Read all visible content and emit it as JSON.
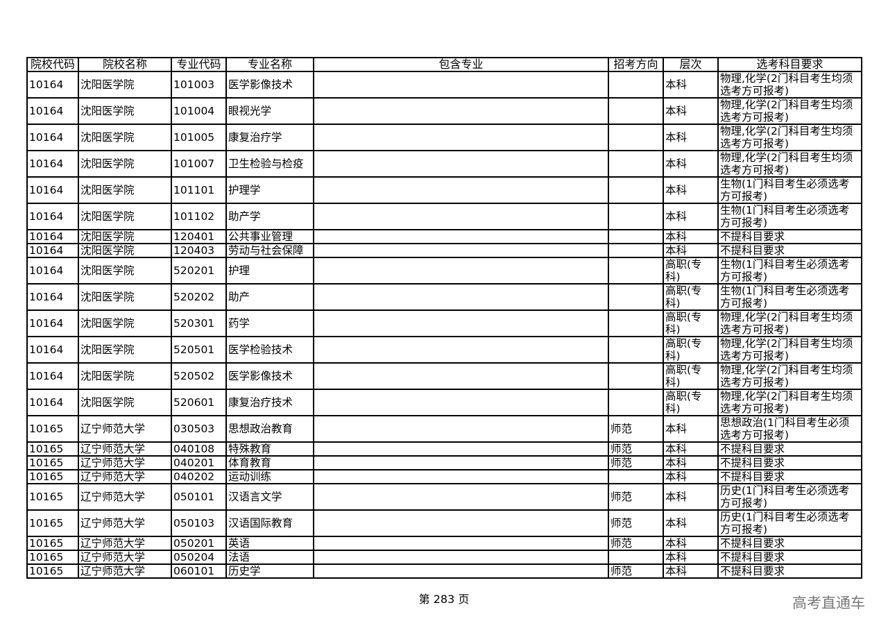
{
  "table": {
    "headers": [
      "院校代码",
      "院校名称",
      "专业代码",
      "专业名称",
      "包含专业",
      "招考方向",
      "层次",
      "选考科目要求"
    ],
    "rows": [
      [
        "10164",
        "沈阳医学院",
        "101003",
        "医学影像技术",
        "",
        "",
        "本科",
        "物理,化学(2门科目考生均须选考方可报考)"
      ],
      [
        "10164",
        "沈阳医学院",
        "101004",
        "眼视光学",
        "",
        "",
        "本科",
        "物理,化学(2门科目考生均须选考方可报考)"
      ],
      [
        "10164",
        "沈阳医学院",
        "101005",
        "康复治疗学",
        "",
        "",
        "本科",
        "物理,化学(2门科目考生均须选考方可报考)"
      ],
      [
        "10164",
        "沈阳医学院",
        "101007",
        "卫生检验与检疫",
        "",
        "",
        "本科",
        "物理,化学(2门科目考生均须选考方可报考)"
      ],
      [
        "10164",
        "沈阳医学院",
        "101101",
        "护理学",
        "",
        "",
        "本科",
        "生物(1门科目考生必须选考方可报考)"
      ],
      [
        "10164",
        "沈阳医学院",
        "101102",
        "助产学",
        "",
        "",
        "本科",
        "生物(1门科目考生必须选考方可报考)"
      ],
      [
        "10164",
        "沈阳医学院",
        "120401",
        "公共事业管理",
        "",
        "",
        "本科",
        "不提科目要求"
      ],
      [
        "10164",
        "沈阳医学院",
        "120403",
        "劳动与社会保障",
        "",
        "",
        "本科",
        "不提科目要求"
      ],
      [
        "10164",
        "沈阳医学院",
        "520201",
        "护理",
        "",
        "",
        "高职(专科)",
        "生物(1门科目考生必须选考方可报考)"
      ],
      [
        "10164",
        "沈阳医学院",
        "520202",
        "助产",
        "",
        "",
        "高职(专科)",
        "生物(1门科目考生必须选考方可报考)"
      ],
      [
        "10164",
        "沈阳医学院",
        "520301",
        "药学",
        "",
        "",
        "高职(专科)",
        "物理,化学(2门科目考生均须选考方可报考)"
      ],
      [
        "10164",
        "沈阳医学院",
        "520501",
        "医学检验技术",
        "",
        "",
        "高职(专科)",
        "物理,化学(2门科目考生均须选考方可报考)"
      ],
      [
        "10164",
        "沈阳医学院",
        "520502",
        "医学影像技术",
        "",
        "",
        "高职(专科)",
        "物理,化学(2门科目考生均须选考方可报考)"
      ],
      [
        "10164",
        "沈阳医学院",
        "520601",
        "康复治疗技术",
        "",
        "",
        "高职(专科)",
        "物理,化学(2门科目考生均须选考方可报考)"
      ],
      [
        "10165",
        "辽宁师范大学",
        "030503",
        "思想政治教育",
        "",
        "师范",
        "本科",
        "思想政治(1门科目考生必须选考方可报考)"
      ],
      [
        "10165",
        "辽宁师范大学",
        "040108",
        "特殊教育",
        "",
        "师范",
        "本科",
        "不提科目要求"
      ],
      [
        "10165",
        "辽宁师范大学",
        "040201",
        "体育教育",
        "",
        "师范",
        "本科",
        "不提科目要求"
      ],
      [
        "10165",
        "辽宁师范大学",
        "040202",
        "运动训练",
        "",
        "",
        "本科",
        "不提科目要求"
      ],
      [
        "10165",
        "辽宁师范大学",
        "050101",
        "汉语言文学",
        "",
        "师范",
        "本科",
        "历史(1门科目考生必须选考方可报考)"
      ],
      [
        "10165",
        "辽宁师范大学",
        "050103",
        "汉语国际教育",
        "",
        "师范",
        "本科",
        "历史(1门科目考生必须选考方可报考)"
      ],
      [
        "10165",
        "辽宁师范大学",
        "050201",
        "英语",
        "",
        "师范",
        "本科",
        "不提科目要求"
      ],
      [
        "10165",
        "辽宁师范大学",
        "050204",
        "法语",
        "",
        "",
        "本科",
        "不提科目要求"
      ],
      [
        "10165",
        "辽宁师范大学",
        "060101",
        "历史学",
        "",
        "师范",
        "本科",
        "不提科目要求"
      ]
    ]
  },
  "footer": {
    "page_label": "第 283 页"
  },
  "watermark": "高考直通车"
}
